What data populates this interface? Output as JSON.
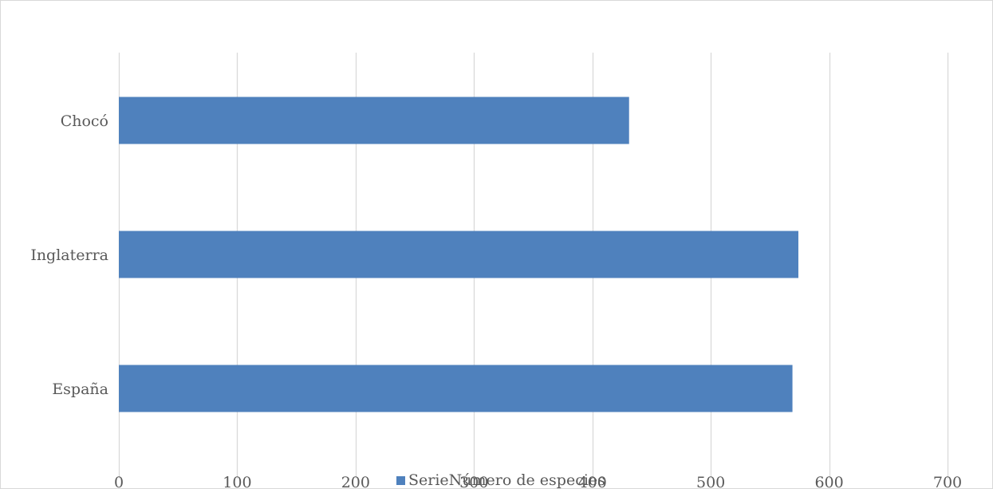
{
  "chart_data": {
    "type": "bar",
    "orientation": "horizontal",
    "categories": [
      "Chocó",
      "Inglaterra",
      "España"
    ],
    "series": [
      {
        "name": "SerieNúmero de especies",
        "values": [
          431,
          574,
          569
        ]
      }
    ],
    "xlim": [
      0,
      700
    ],
    "xticks": [
      0,
      100,
      200,
      300,
      400,
      500,
      600,
      700
    ],
    "xlabel": "",
    "ylabel": "",
    "title": "",
    "grid": "vertical",
    "legend_position": "bottom",
    "colors": {
      "bar": "#4f81bd",
      "gridline": "#d9d9d9",
      "text": "#595959"
    }
  }
}
